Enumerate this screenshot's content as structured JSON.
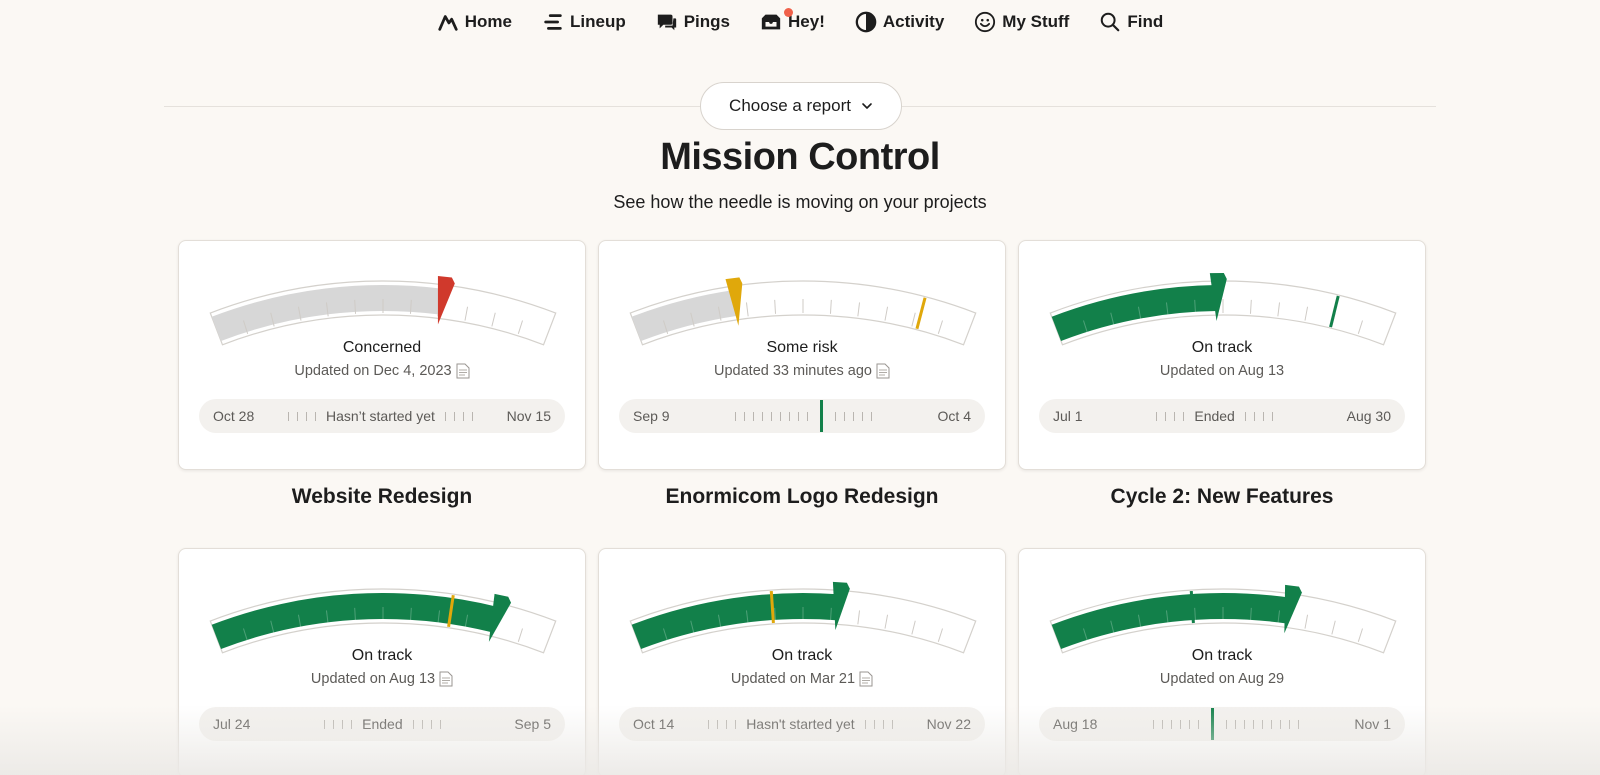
{
  "nav": {
    "items": [
      {
        "label": "Home",
        "icon": "basecamp-logo-icon"
      },
      {
        "label": "Lineup",
        "icon": "lineup-icon"
      },
      {
        "label": "Pings",
        "icon": "pings-chat-icon"
      },
      {
        "label": "Hey!",
        "icon": "hey-inbox-icon"
      },
      {
        "label": "Activity",
        "icon": "activity-pie-icon"
      },
      {
        "label": "My Stuff",
        "icon": "smiley-face-icon"
      },
      {
        "label": "Find",
        "icon": "search-icon"
      }
    ]
  },
  "chooser": {
    "label": "Choose a report"
  },
  "page": {
    "title": "Mission Control",
    "subtitle": "See how the needle is moving on your projects"
  },
  "colors": {
    "green": "#12804a",
    "yellow": "#e0a80b",
    "red": "#d0392c",
    "gray": "#d7d7d7"
  },
  "projects": [
    {
      "name": "Website Redesign",
      "status": "Concerned",
      "updated": "Updated on Dec 4, 2023",
      "has_doc_icon": true,
      "timeline_start": "Oct 28",
      "timeline_label": "Hasn’t started yet",
      "timeline_end": "Nov 15",
      "needle": 0.67,
      "needle_color": "red",
      "fill_color": "gray",
      "marker": null
    },
    {
      "name": "Enormicom Logo Redesign",
      "status": "Some risk",
      "updated": "Updated 33 minutes ago",
      "has_doc_icon": true,
      "timeline_start": "Sep 9",
      "timeline_label": "",
      "timeline_end": "Oct 4",
      "needle": 0.3,
      "needle_color": "yellow",
      "fill_color": "gray",
      "marker": {
        "pos": 0.85,
        "color": "yellow"
      }
    },
    {
      "name": "Cycle 2: New Features",
      "status": "On track",
      "updated": "Updated on Aug 13",
      "has_doc_icon": false,
      "timeline_start": "Jul 1",
      "timeline_label": "Ended",
      "timeline_end": "Aug 30",
      "needle": 0.48,
      "needle_color": "green",
      "fill_color": "green",
      "marker": {
        "pos": 0.83,
        "color": "green"
      }
    },
    {
      "name": "",
      "status": "On track",
      "updated": "Updated on Aug 13",
      "has_doc_icon": true,
      "timeline_start": "Jul 24",
      "timeline_label": "Ended",
      "timeline_end": "Sep 5",
      "needle": 0.83,
      "needle_color": "green",
      "fill_color": "green",
      "marker": {
        "pos": 0.7,
        "color": "yellow"
      }
    },
    {
      "name": "",
      "status": "On track",
      "updated": "Updated on Mar 21",
      "has_doc_icon": true,
      "timeline_start": "Oct 14",
      "timeline_label": "Hasn't started yet",
      "timeline_end": "Nov 22",
      "needle": 0.6,
      "needle_color": "green",
      "fill_color": "green",
      "marker": {
        "pos": 0.41,
        "color": "yellow"
      }
    },
    {
      "name": "",
      "status": "On track",
      "updated": "Updated on Aug 29",
      "has_doc_icon": false,
      "timeline_start": "Aug 18",
      "timeline_label": "",
      "timeline_end": "Nov 1",
      "needle": 0.69,
      "needle_color": "green",
      "fill_color": "green",
      "marker": {
        "pos": 0.41,
        "color": "green"
      }
    }
  ]
}
